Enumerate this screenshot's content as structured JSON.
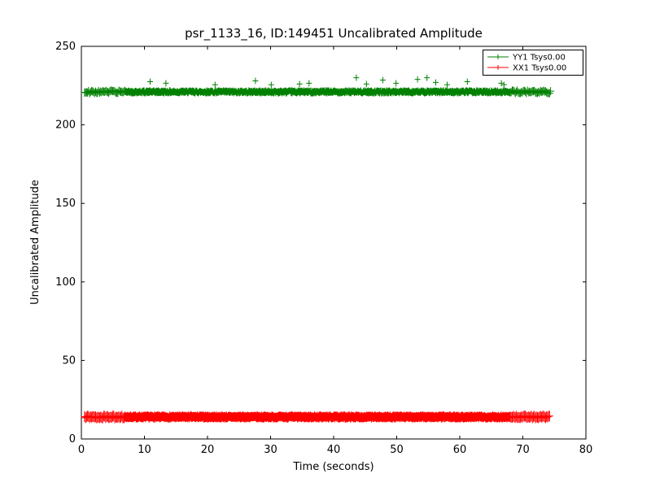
{
  "chart_data": {
    "type": "scatter",
    "subtype": "errorbar",
    "title": "psr_1133_16, ID:149451 Uncalibrated Amplitude",
    "xlabel": "Time (seconds)",
    "ylabel": "Uncalibrated Amplitude",
    "xlim": [
      0,
      80
    ],
    "ylim": [
      0,
      250
    ],
    "xticks": [
      0,
      10,
      20,
      30,
      40,
      50,
      60,
      70,
      80
    ],
    "yticks": [
      0,
      50,
      100,
      150,
      200,
      250
    ],
    "grid": false,
    "legend_position": "upper-right",
    "series": [
      {
        "name": "YY1 Tsys0.00",
        "color": "#008000",
        "mean": 221,
        "noise": 0.9,
        "err": 2.0,
        "x_start": 0.5,
        "x_end": 74.5,
        "dense_start": 7.0,
        "dense_end": 68.0,
        "n_dense": 1200,
        "sparse_step": 0.16,
        "sparse_err": 2.6,
        "seed": 42,
        "spikes": [
          [
            10.9,
            227.5
          ],
          [
            13.4,
            226.5
          ],
          [
            21.2,
            225.5
          ],
          [
            27.6,
            228.0
          ],
          [
            30.1,
            225.5
          ],
          [
            34.6,
            226.0
          ],
          [
            36.1,
            226.5
          ],
          [
            43.6,
            230.0
          ],
          [
            45.2,
            226.0
          ],
          [
            47.8,
            228.5
          ],
          [
            49.9,
            226.5
          ],
          [
            53.3,
            229.0
          ],
          [
            54.8,
            230.0
          ],
          [
            56.2,
            227.0
          ],
          [
            58.0,
            225.5
          ],
          [
            61.2,
            227.5
          ],
          [
            66.6,
            226.5
          ],
          [
            67.0,
            225.5
          ]
        ]
      },
      {
        "name": "XX1 Tsys0.00",
        "color": "#ff0000",
        "mean": 14,
        "noise": 0.7,
        "err": 2.8,
        "x_start": 0.5,
        "x_end": 74.3,
        "dense_start": 6.8,
        "dense_end": 68.0,
        "n_dense": 1200,
        "sparse_step": 0.16,
        "sparse_err": 3.4,
        "seed": 7,
        "spikes": []
      }
    ]
  }
}
